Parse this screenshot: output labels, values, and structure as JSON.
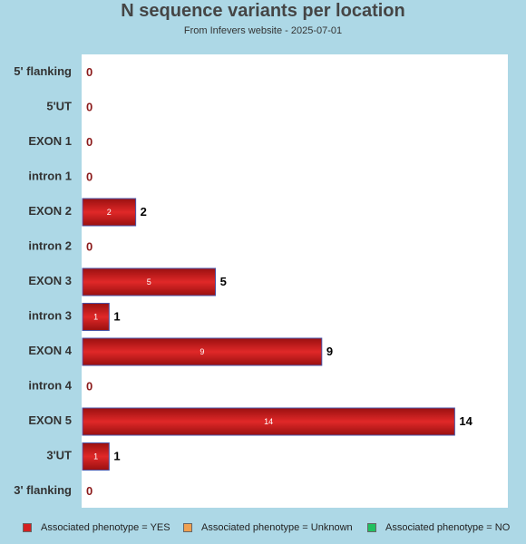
{
  "chart_data": {
    "type": "bar",
    "orientation": "horizontal",
    "title": "N sequence variants per location",
    "subtitle": "From Infevers website - 2025-07-01",
    "categories": [
      "5' flanking",
      "5'UT",
      "EXON 1",
      "intron 1",
      "EXON 2",
      "intron 2",
      "EXON 3",
      "intron 3",
      "EXON 4",
      "intron 4",
      "EXON 5",
      "3'UT",
      "3' flanking"
    ],
    "series": [
      {
        "name": "Associated phenotype = YES",
        "color": "#d42020",
        "values": [
          0,
          0,
          0,
          0,
          2,
          0,
          5,
          1,
          9,
          0,
          14,
          1,
          0
        ]
      },
      {
        "name": "Associated phenotype = Unknown",
        "color": "#f0a050",
        "values": [
          0,
          0,
          0,
          0,
          0,
          0,
          0,
          0,
          0,
          0,
          0,
          0,
          0
        ]
      },
      {
        "name": "Associated phenotype = NO",
        "color": "#20c060",
        "values": [
          0,
          0,
          0,
          0,
          0,
          0,
          0,
          0,
          0,
          0,
          0,
          0,
          0
        ]
      }
    ],
    "totals": [
      0,
      0,
      0,
      0,
      2,
      0,
      5,
      1,
      9,
      0,
      14,
      1,
      0
    ],
    "xlim": [
      0,
      16
    ],
    "grid": false,
    "legend_position": "bottom"
  }
}
